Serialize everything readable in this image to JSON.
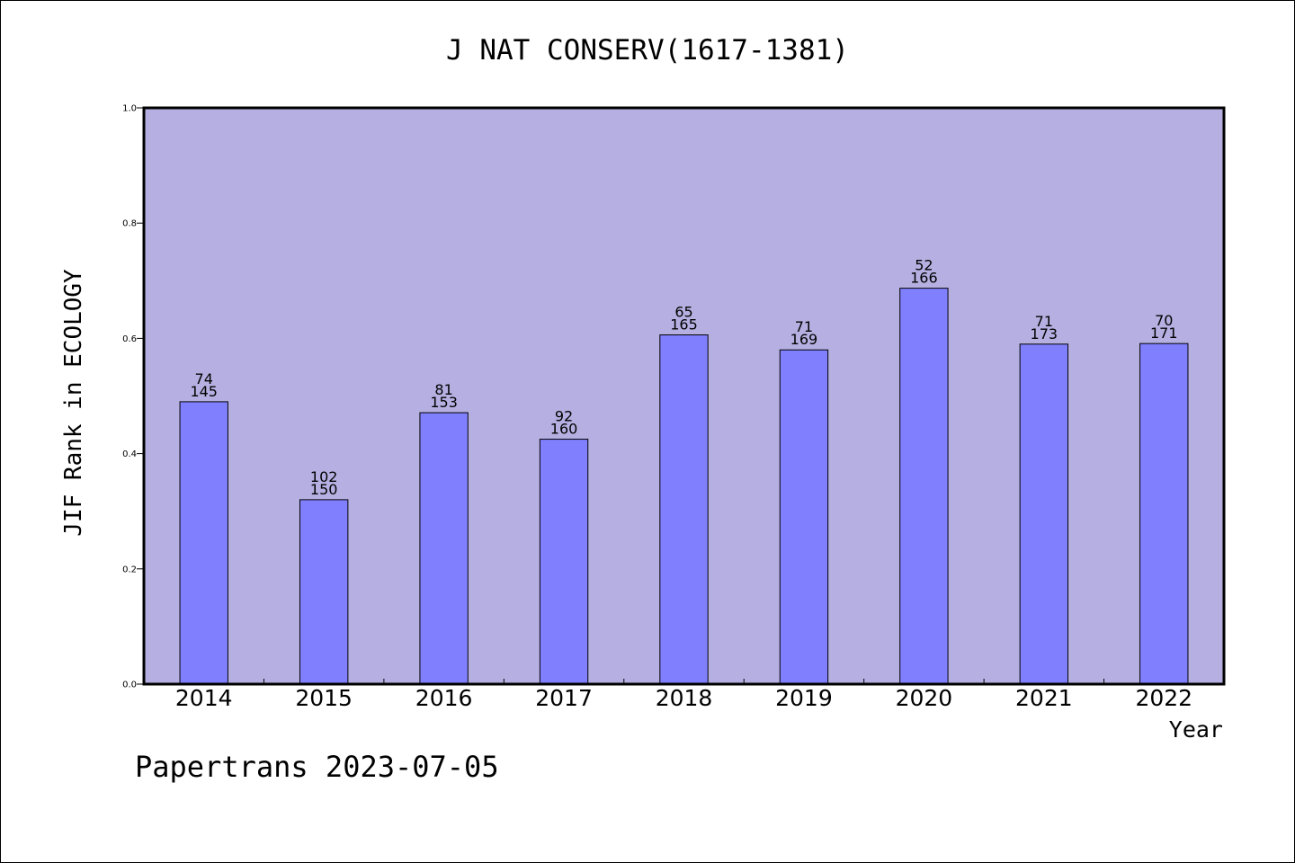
{
  "footer": {
    "text": "Papertrans 2023-07-05"
  },
  "chart_data": {
    "type": "bar",
    "title": "J NAT CONSERV(1617-1381)",
    "xlabel": "Year",
    "ylabel": "JIF Rank in ECOLOGY",
    "ylim": [
      0.0,
      1.0
    ],
    "yticks": [
      "0.0",
      "0.2",
      "0.4",
      "0.6",
      "0.8",
      "1.0"
    ],
    "grid": false,
    "colors": {
      "plot_background": "#b6b0e2",
      "bar_fill": "#8080ff",
      "bar_stroke": "#000000",
      "axis": "#000000"
    },
    "categories": [
      "2014",
      "2015",
      "2016",
      "2017",
      "2018",
      "2019",
      "2020",
      "2021",
      "2022"
    ],
    "values": [
      0.49,
      0.32,
      0.471,
      0.425,
      0.606,
      0.58,
      0.687,
      0.59,
      0.591
    ],
    "rank": [
      "74",
      "102",
      "81",
      "92",
      "65",
      "71",
      "52",
      "71",
      "70"
    ],
    "total": [
      "145",
      "150",
      "153",
      "160",
      "165",
      "169",
      "166",
      "173",
      "171"
    ]
  }
}
